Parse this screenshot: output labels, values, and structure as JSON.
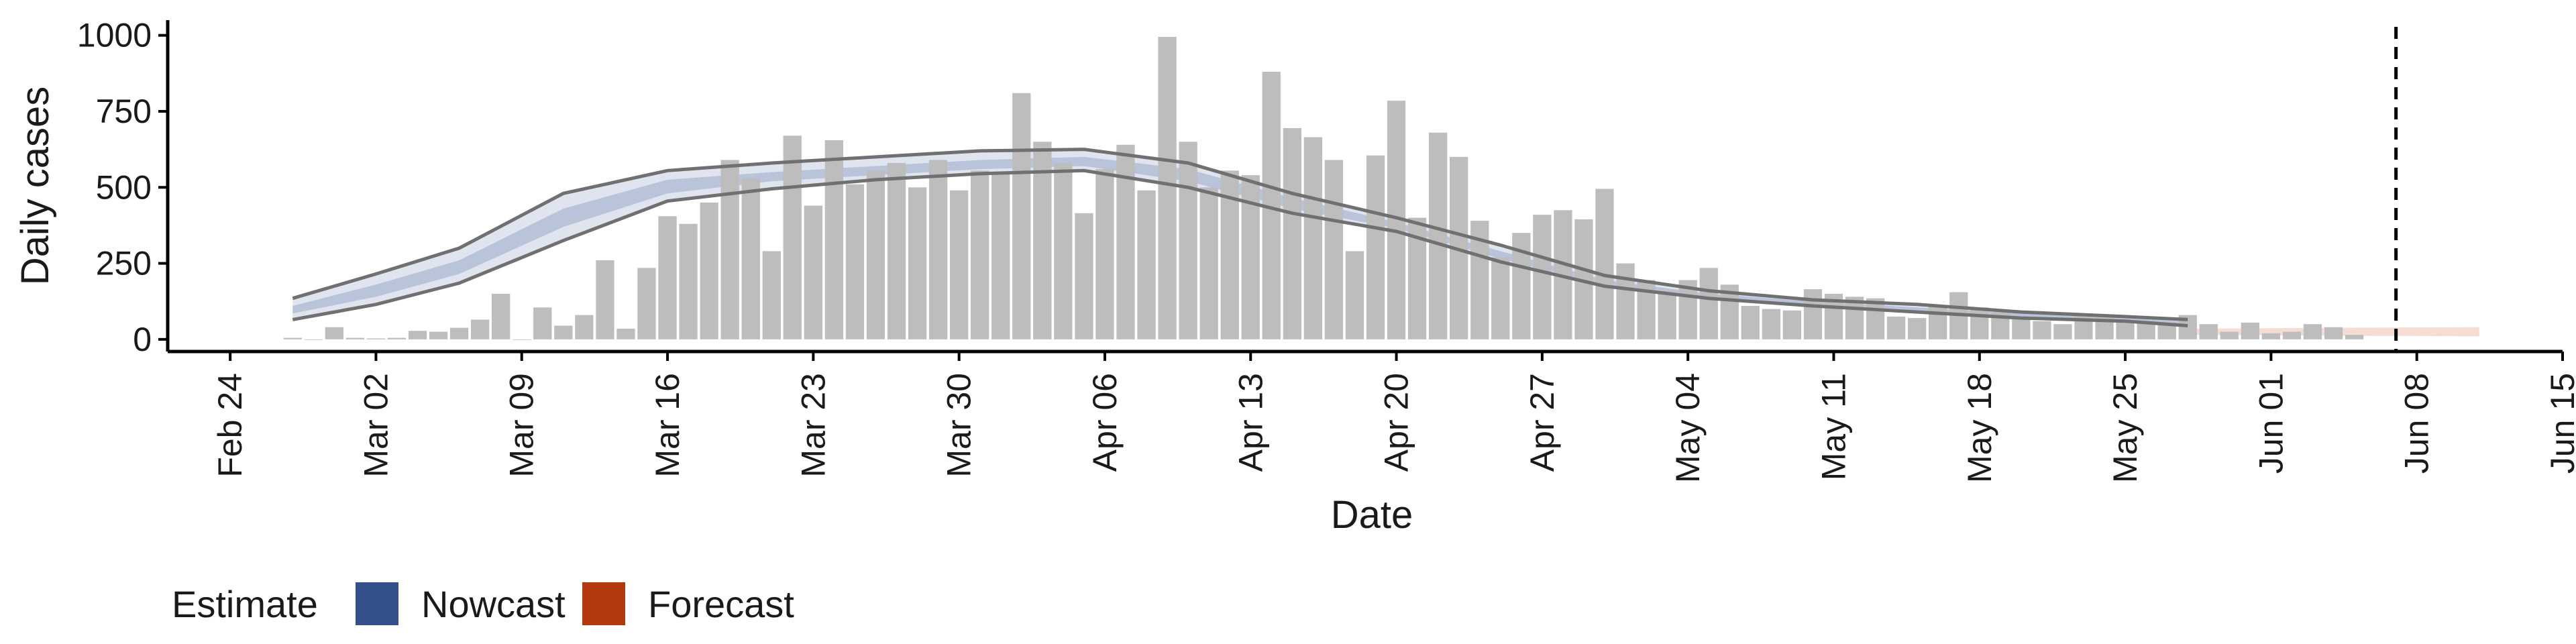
{
  "chart_data": {
    "type": "bar",
    "xlabel": "Date",
    "ylabel": "Daily cases",
    "xlim": [
      "2020-02-21",
      "2020-06-15"
    ],
    "ylim": [
      -40,
      1050
    ],
    "y_ticks": [
      0,
      250,
      500,
      750,
      1000
    ],
    "x_ticks": [
      "2020-02-24",
      "2020-03-02",
      "2020-03-09",
      "2020-03-16",
      "2020-03-23",
      "2020-03-30",
      "2020-04-06",
      "2020-04-13",
      "2020-04-20",
      "2020-04-27",
      "2020-05-04",
      "2020-05-11",
      "2020-05-18",
      "2020-05-25",
      "2020-06-01",
      "2020-06-08",
      "2020-06-15"
    ],
    "x_tick_labels": [
      "Feb 24",
      "Mar 02",
      "Mar 09",
      "Mar 16",
      "Mar 23",
      "Mar 30",
      "Apr 06",
      "Apr 13",
      "Apr 20",
      "Apr 27",
      "May 04",
      "May 11",
      "May 18",
      "May 25",
      "Jun 01",
      "Jun 08",
      "Jun 15"
    ],
    "bars": {
      "start_date": "2020-02-27",
      "values": [
        5,
        0,
        40,
        5,
        3,
        5,
        28,
        25,
        38,
        65,
        150,
        0,
        105,
        45,
        80,
        260,
        35,
        235,
        405,
        380,
        450,
        590,
        530,
        290,
        670,
        440,
        655,
        510,
        555,
        580,
        500,
        590,
        490,
        555,
        550,
        810,
        650,
        580,
        415,
        560,
        640,
        490,
        995,
        650,
        500,
        555,
        540,
        880,
        695,
        665,
        590,
        290,
        605,
        785,
        400,
        680,
        600,
        390,
        270,
        350,
        410,
        425,
        395,
        495,
        250,
        195,
        160,
        195,
        235,
        180,
        110,
        100,
        95,
        165,
        150,
        140,
        135,
        75,
        70,
        110,
        155,
        105,
        90,
        70,
        60,
        50,
        85,
        75,
        60,
        60,
        55,
        80,
        50,
        25,
        55,
        20,
        25,
        50,
        40,
        15
      ]
    },
    "band_outer": {
      "name": "Nowcast",
      "dates": [
        "2020-02-27",
        "2020-03-02",
        "2020-03-06",
        "2020-03-11",
        "2020-03-16",
        "2020-03-21",
        "2020-03-26",
        "2020-03-31",
        "2020-04-05",
        "2020-04-10",
        "2020-04-15",
        "2020-04-20",
        "2020-04-25",
        "2020-04-30",
        "2020-05-05",
        "2020-05-10",
        "2020-05-15",
        "2020-05-20",
        "2020-05-25",
        "2020-05-28"
      ],
      "lower": [
        65,
        115,
        185,
        325,
        455,
        495,
        525,
        545,
        555,
        500,
        415,
        355,
        255,
        175,
        135,
        110,
        90,
        70,
        60,
        45
      ],
      "upper": [
        135,
        215,
        300,
        480,
        555,
        580,
        600,
        620,
        625,
        580,
        480,
        400,
        310,
        210,
        160,
        130,
        115,
        90,
        75,
        65
      ]
    },
    "band_inner": {
      "dates": [
        "2020-02-27",
        "2020-03-02",
        "2020-03-06",
        "2020-03-11",
        "2020-03-16",
        "2020-03-21",
        "2020-03-26",
        "2020-03-31",
        "2020-04-05",
        "2020-04-10",
        "2020-04-15",
        "2020-04-20",
        "2020-04-25",
        "2020-04-30",
        "2020-05-05",
        "2020-05-10",
        "2020-05-15",
        "2020-05-20",
        "2020-05-25",
        "2020-05-28"
      ],
      "lower": [
        85,
        140,
        215,
        370,
        480,
        520,
        540,
        560,
        570,
        520,
        430,
        365,
        265,
        180,
        140,
        115,
        95,
        75,
        62,
        50
      ],
      "upper": [
        110,
        180,
        260,
        430,
        525,
        550,
        570,
        590,
        600,
        560,
        465,
        385,
        290,
        195,
        150,
        125,
        105,
        85,
        70,
        58
      ]
    },
    "forecast_band": {
      "name": "Forecast",
      "dates": [
        "2020-05-28",
        "2020-06-04",
        "2020-06-11"
      ],
      "lower": [
        15,
        12,
        10
      ],
      "upper": [
        35,
        38,
        40
      ]
    },
    "vline_date": "2020-06-07",
    "legend": {
      "title": "Estimate",
      "position": "bottom-left",
      "items": [
        {
          "label": "Nowcast",
          "color": "#33508a"
        },
        {
          "label": "Forecast",
          "color": "#b33a0f"
        }
      ]
    },
    "colors": {
      "bar": "#bdbdbd",
      "nowcast_outer": "#dfe4ef",
      "nowcast_inner": "#b9c3da",
      "forecast": "#f6ddd3",
      "bound_line": "#707070",
      "vline": "#000000"
    }
  }
}
